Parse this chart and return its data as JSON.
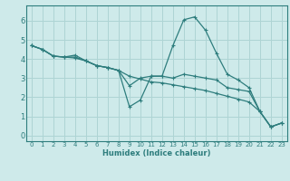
{
  "xlabel": "Humidex (Indice chaleur)",
  "bg_color": "#ceeaea",
  "grid_color": "#aed4d4",
  "line_color": "#2e7d7d",
  "spine_color": "#2e7d7d",
  "xlim": [
    -0.5,
    23.5
  ],
  "ylim": [
    -0.3,
    6.8
  ],
  "xticks": [
    0,
    1,
    2,
    3,
    4,
    5,
    6,
    7,
    8,
    9,
    10,
    11,
    12,
    13,
    14,
    15,
    16,
    17,
    18,
    19,
    20,
    21,
    22,
    23
  ],
  "yticks": [
    0,
    1,
    2,
    3,
    4,
    5,
    6
  ],
  "lines": [
    {
      "x": [
        0,
        1,
        2,
        3,
        4,
        5,
        6,
        7,
        8,
        9,
        10,
        11,
        12,
        13,
        14,
        15,
        16,
        17,
        18,
        19,
        20,
        21,
        22,
        23
      ],
      "y": [
        4.7,
        4.5,
        4.15,
        4.1,
        4.05,
        3.9,
        3.65,
        3.55,
        3.4,
        3.1,
        2.95,
        2.8,
        2.75,
        2.65,
        2.55,
        2.45,
        2.35,
        2.2,
        2.05,
        1.9,
        1.75,
        1.25,
        0.45,
        0.65
      ]
    },
    {
      "x": [
        0,
        1,
        2,
        3,
        4,
        5,
        6,
        7,
        8,
        9,
        10,
        11,
        12,
        13,
        14,
        15,
        16,
        17,
        18,
        19,
        20,
        21,
        22,
        23
      ],
      "y": [
        4.7,
        4.5,
        4.15,
        4.1,
        4.2,
        3.9,
        3.65,
        3.55,
        3.4,
        1.5,
        1.85,
        3.1,
        3.1,
        4.7,
        6.05,
        6.2,
        5.5,
        4.3,
        3.2,
        2.9,
        2.5,
        1.25,
        0.45,
        0.65
      ]
    },
    {
      "x": [
        0,
        1,
        2,
        3,
        4,
        5,
        6,
        7,
        8,
        9,
        10,
        11,
        12,
        13,
        14,
        15,
        16,
        17,
        18,
        19,
        20,
        21,
        22,
        23
      ],
      "y": [
        4.7,
        4.5,
        4.15,
        4.1,
        4.1,
        3.9,
        3.65,
        3.55,
        3.4,
        2.6,
        3.0,
        3.1,
        3.1,
        3.0,
        3.2,
        3.1,
        3.0,
        2.9,
        2.5,
        2.4,
        2.3,
        1.25,
        0.45,
        0.65
      ]
    }
  ]
}
